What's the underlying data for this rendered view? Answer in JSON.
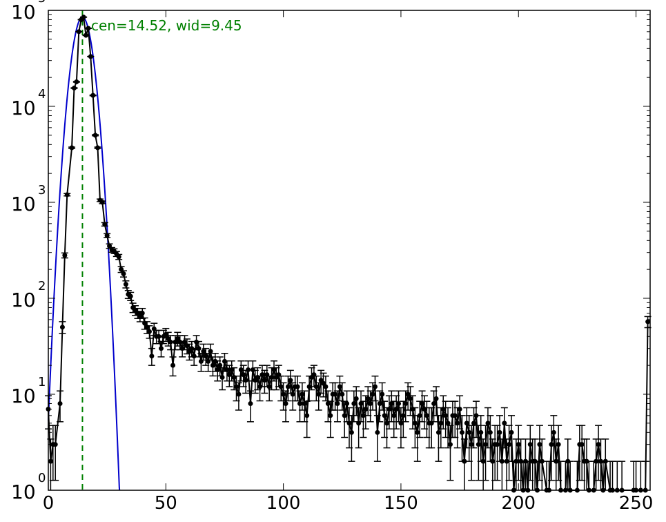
{
  "chart_data": {
    "type": "scatter",
    "title": "",
    "xlabel": "",
    "ylabel": "",
    "xlim": [
      0,
      256
    ],
    "ylim": [
      1,
      100000
    ],
    "yscale": "log",
    "grid": false,
    "x_ticks": [
      {
        "value": 0,
        "label": "0"
      },
      {
        "value": 50,
        "label": "50"
      },
      {
        "value": 100,
        "label": "100"
      },
      {
        "value": 150,
        "label": "150"
      },
      {
        "value": 200,
        "label": "200"
      },
      {
        "value": 250,
        "label": "250"
      }
    ],
    "y_ticks": [
      {
        "value": 1,
        "base": "10",
        "exp": "0"
      },
      {
        "value": 10,
        "base": "10",
        "exp": "1"
      },
      {
        "value": 100,
        "base": "10",
        "exp": "2"
      },
      {
        "value": 1000,
        "base": "10",
        "exp": "3"
      },
      {
        "value": 10000,
        "base": "10",
        "exp": "4"
      },
      {
        "value": 100000,
        "base": "10",
        "exp": "5"
      }
    ],
    "annotation": {
      "text": "cen=14.52, wid=9.45",
      "x": 14.52,
      "color": "#008000"
    },
    "fit_curve": {
      "color": "#0000cc",
      "center": 14.52,
      "sigma": 3.3,
      "peak": 85000
    },
    "points_color": "#000000",
    "points": [
      [
        0,
        7
      ],
      [
        1,
        2
      ],
      [
        2,
        3
      ],
      [
        3,
        3
      ],
      [
        5,
        8
      ],
      [
        6,
        50
      ],
      [
        7,
        280
      ],
      [
        8,
        1200
      ],
      [
        10,
        3700
      ],
      [
        11,
        15500
      ],
      [
        12,
        18000
      ],
      [
        13,
        60000
      ],
      [
        14,
        80000
      ],
      [
        15,
        85000
      ],
      [
        16,
        55000
      ],
      [
        17,
        65000
      ],
      [
        18,
        33000
      ],
      [
        19,
        13000
      ],
      [
        20,
        5000
      ],
      [
        21,
        3700
      ],
      [
        22,
        1050
      ],
      [
        23,
        1000
      ],
      [
        24,
        590
      ],
      [
        25,
        450
      ],
      [
        26,
        350
      ],
      [
        27,
        320
      ],
      [
        28,
        310
      ],
      [
        29,
        290
      ],
      [
        30,
        270
      ],
      [
        31,
        200
      ],
      [
        32,
        180
      ],
      [
        33,
        140
      ],
      [
        34,
        110
      ],
      [
        35,
        105
      ],
      [
        36,
        80
      ],
      [
        37,
        75
      ],
      [
        38,
        70
      ],
      [
        39,
        65
      ],
      [
        40,
        70
      ],
      [
        41,
        55
      ],
      [
        42,
        50
      ],
      [
        43,
        45
      ],
      [
        44,
        25
      ],
      [
        45,
        48
      ],
      [
        46,
        40
      ],
      [
        47,
        40
      ],
      [
        48,
        30
      ],
      [
        49,
        40
      ],
      [
        50,
        42
      ],
      [
        51,
        38
      ],
      [
        52,
        35
      ],
      [
        53,
        20
      ],
      [
        54,
        35
      ],
      [
        55,
        38
      ],
      [
        56,
        35
      ],
      [
        57,
        30
      ],
      [
        58,
        35
      ],
      [
        59,
        32
      ],
      [
        60,
        28
      ],
      [
        61,
        30
      ],
      [
        62,
        25
      ],
      [
        63,
        35
      ],
      [
        64,
        30
      ],
      [
        65,
        22
      ],
      [
        66,
        28
      ],
      [
        67,
        25
      ],
      [
        68,
        22
      ],
      [
        69,
        28
      ],
      [
        70,
        20
      ],
      [
        71,
        22
      ],
      [
        72,
        18
      ],
      [
        73,
        20
      ],
      [
        74,
        15
      ],
      [
        75,
        22
      ],
      [
        76,
        18
      ],
      [
        77,
        16
      ],
      [
        78,
        18
      ],
      [
        79,
        15
      ],
      [
        80,
        12
      ],
      [
        81,
        10
      ],
      [
        82,
        18
      ],
      [
        83,
        16
      ],
      [
        84,
        14
      ],
      [
        85,
        18
      ],
      [
        86,
        8
      ],
      [
        87,
        18
      ],
      [
        88,
        14
      ],
      [
        89,
        15
      ],
      [
        90,
        12
      ],
      [
        91,
        16
      ],
      [
        92,
        14
      ],
      [
        93,
        16
      ],
      [
        94,
        12
      ],
      [
        95,
        15
      ],
      [
        96,
        18
      ],
      [
        97,
        15
      ],
      [
        98,
        16
      ],
      [
        99,
        12
      ],
      [
        100,
        10
      ],
      [
        101,
        8
      ],
      [
        102,
        12
      ],
      [
        103,
        14
      ],
      [
        104,
        10
      ],
      [
        105,
        12
      ],
      [
        106,
        12
      ],
      [
        107,
        8
      ],
      [
        108,
        10
      ],
      [
        109,
        8
      ],
      [
        110,
        6
      ],
      [
        111,
        12
      ],
      [
        112,
        15
      ],
      [
        113,
        16
      ],
      [
        114,
        12
      ],
      [
        115,
        10
      ],
      [
        116,
        14
      ],
      [
        117,
        13
      ],
      [
        118,
        12
      ],
      [
        119,
        8
      ],
      [
        120,
        6
      ],
      [
        121,
        10
      ],
      [
        122,
        10
      ],
      [
        123,
        8
      ],
      [
        124,
        12
      ],
      [
        125,
        10
      ],
      [
        126,
        6
      ],
      [
        127,
        8
      ],
      [
        128,
        5
      ],
      [
        129,
        4
      ],
      [
        130,
        8
      ],
      [
        131,
        9
      ],
      [
        132,
        5
      ],
      [
        133,
        8
      ],
      [
        134,
        6
      ],
      [
        135,
        7
      ],
      [
        136,
        9
      ],
      [
        137,
        8
      ],
      [
        138,
        10
      ],
      [
        139,
        12
      ],
      [
        140,
        4
      ],
      [
        141,
        8
      ],
      [
        142,
        10
      ],
      [
        143,
        6
      ],
      [
        144,
        5
      ],
      [
        145,
        7
      ],
      [
        146,
        8
      ],
      [
        147,
        6
      ],
      [
        148,
        7
      ],
      [
        149,
        8
      ],
      [
        150,
        5
      ],
      [
        151,
        6
      ],
      [
        152,
        8
      ],
      [
        153,
        10
      ],
      [
        154,
        9
      ],
      [
        155,
        7
      ],
      [
        156,
        5
      ],
      [
        157,
        4
      ],
      [
        158,
        6
      ],
      [
        159,
        8
      ],
      [
        160,
        7
      ],
      [
        161,
        6
      ],
      [
        162,
        5
      ],
      [
        163,
        5
      ],
      [
        164,
        8
      ],
      [
        165,
        9
      ],
      [
        166,
        4
      ],
      [
        167,
        5
      ],
      [
        168,
        7
      ],
      [
        169,
        6
      ],
      [
        170,
        5
      ],
      [
        171,
        3
      ],
      [
        172,
        6
      ],
      [
        173,
        6
      ],
      [
        174,
        5
      ],
      [
        175,
        7
      ],
      [
        176,
        4
      ],
      [
        177,
        2
      ],
      [
        178,
        5
      ],
      [
        179,
        4
      ],
      [
        180,
        3
      ],
      [
        181,
        5
      ],
      [
        182,
        6
      ],
      [
        183,
        3
      ],
      [
        184,
        4
      ],
      [
        185,
        2
      ],
      [
        186,
        3
      ],
      [
        187,
        5
      ],
      [
        188,
        4
      ],
      [
        189,
        2
      ],
      [
        190,
        3
      ],
      [
        191,
        3
      ],
      [
        192,
        4
      ],
      [
        193,
        2
      ],
      [
        194,
        5
      ],
      [
        195,
        2
      ],
      [
        196,
        3
      ],
      [
        197,
        4
      ],
      [
        198,
        1
      ],
      [
        199,
        2
      ],
      [
        200,
        3
      ],
      [
        201,
        2
      ],
      [
        202,
        1
      ],
      [
        203,
        2
      ],
      [
        204,
        1
      ],
      [
        205,
        3
      ],
      [
        206,
        2
      ],
      [
        207,
        2
      ],
      [
        208,
        1
      ],
      [
        209,
        3
      ],
      [
        210,
        2
      ],
      [
        212,
        1
      ],
      [
        213,
        1
      ],
      [
        214,
        3
      ],
      [
        215,
        4
      ],
      [
        216,
        2
      ],
      [
        217,
        3
      ],
      [
        218,
        1
      ],
      [
        220,
        1
      ],
      [
        221,
        2
      ],
      [
        222,
        1
      ],
      [
        225,
        1
      ],
      [
        226,
        3
      ],
      [
        227,
        3
      ],
      [
        228,
        2
      ],
      [
        229,
        2
      ],
      [
        230,
        1
      ],
      [
        232,
        1
      ],
      [
        233,
        2
      ],
      [
        234,
        3
      ],
      [
        235,
        2
      ],
      [
        236,
        1
      ],
      [
        237,
        2
      ],
      [
        239,
        1
      ],
      [
        240,
        1
      ],
      [
        242,
        1
      ],
      [
        244,
        1
      ],
      [
        249,
        1
      ],
      [
        250,
        1
      ],
      [
        252,
        1
      ],
      [
        254,
        1
      ],
      [
        255,
        57
      ]
    ]
  }
}
